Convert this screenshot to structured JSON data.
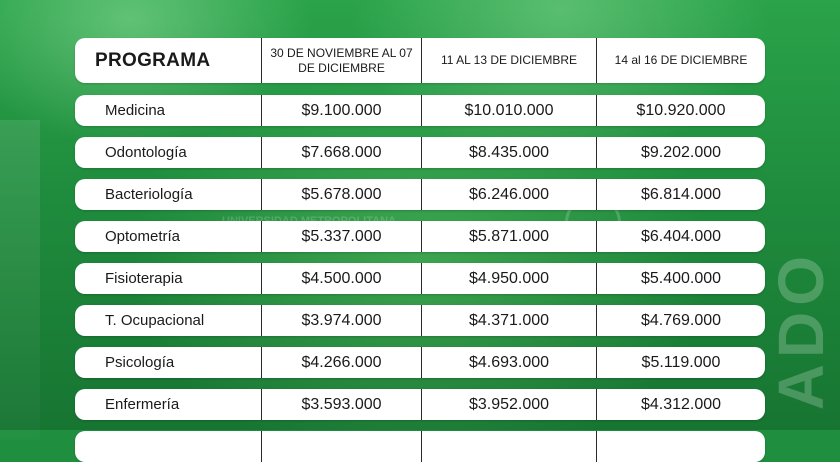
{
  "table": {
    "headers": [
      "PROGRAMA",
      "30 DE NOVIEMBRE AL 07 DE DICIEMBRE",
      "11 AL 13 DE DICIEMBRE",
      "14 al 16 DE DICIEMBRE"
    ],
    "rows": [
      {
        "programa": "Medicina",
        "p1": "$9.100.000",
        "p2": "$10.010.000",
        "p3": "$10.920.000"
      },
      {
        "programa": "Odontología",
        "p1": "$7.668.000",
        "p2": "$8.435.000",
        "p3": "$9.202.000"
      },
      {
        "programa": "Bacteriología",
        "p1": "$5.678.000",
        "p2": "$6.246.000",
        "p3": "$6.814.000"
      },
      {
        "programa": "Optometría",
        "p1": "$5.337.000",
        "p2": "$5.871.000",
        "p3": "$6.404.000"
      },
      {
        "programa": "Fisioterapia",
        "p1": "$4.500.000",
        "p2": "$4.950.000",
        "p3": "$5.400.000"
      },
      {
        "programa": "T. Ocupacional",
        "p1": "$3.974.000",
        "p2": "$4.371.000",
        "p3": "$4.769.000"
      },
      {
        "programa": "Psicología",
        "p1": "$4.266.000",
        "p2": "$4.693.000",
        "p3": "$5.119.000"
      },
      {
        "programa": "Enfermería",
        "p1": "$3.593.000",
        "p2": "$3.952.000",
        "p3": "$4.312.000"
      }
    ]
  },
  "watermarks": {
    "logo_text": "UNIVERSIDAD METROPOLITANA",
    "side_text": "ADO"
  },
  "colors": {
    "background": "#1f8f3f",
    "row_background": "#ffffff",
    "text": "#1a1a1a"
  }
}
